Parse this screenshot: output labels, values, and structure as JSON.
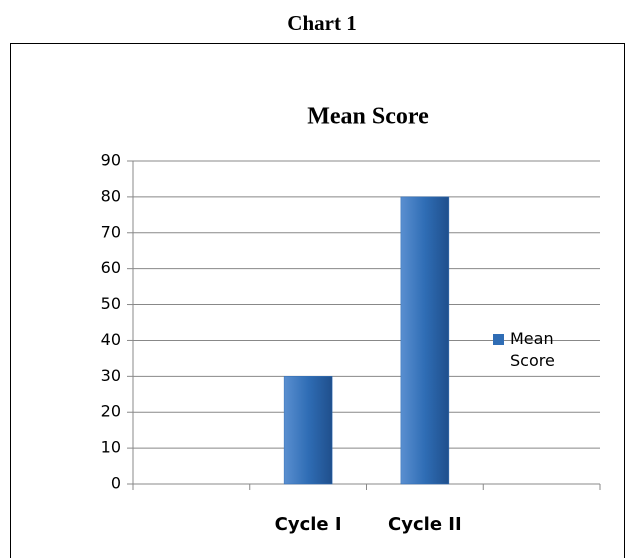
{
  "caption": "Chart 1",
  "chart_data": {
    "type": "bar",
    "title": "Mean Score",
    "categories": [
      null,
      "Cycle I",
      "Cycle II",
      null
    ],
    "series": [
      {
        "name": "Mean Score",
        "color": "#2f6db5",
        "values": [
          null,
          30,
          80,
          null
        ]
      }
    ],
    "ylim": [
      0,
      90
    ],
    "yticks": [
      0,
      10,
      20,
      30,
      40,
      50,
      60,
      70,
      80,
      90
    ],
    "grid": true,
    "legend": "right"
  }
}
